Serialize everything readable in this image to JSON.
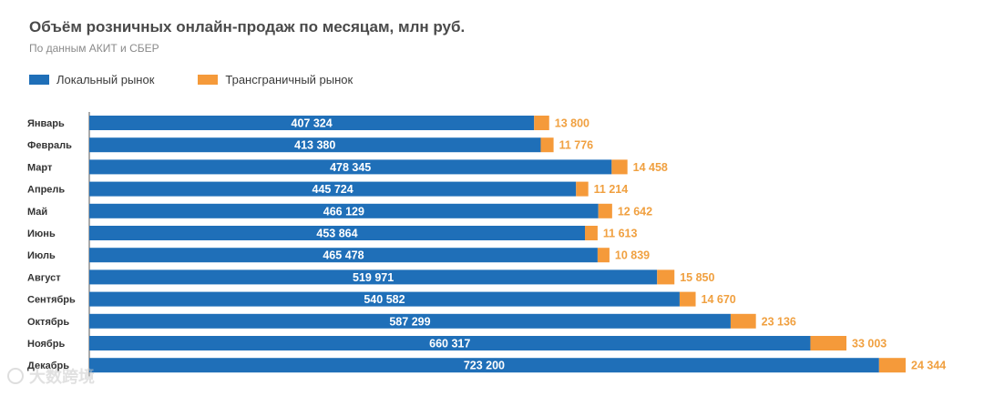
{
  "chart_data": {
    "type": "bar",
    "orientation": "horizontal",
    "stacked": true,
    "title": "Объём розничных онлайн-продаж по месяцам, млн руб.",
    "subtitle": "По данным АКИТ и СБЕР",
    "categories": [
      "Январь",
      "Февраль",
      "Март",
      "Апрель",
      "Май",
      "Июнь",
      "Июль",
      "Август",
      "Сентябрь",
      "Октябрь",
      "Ноябрь",
      "Декабрь"
    ],
    "series": [
      {
        "name": "Локальный рынок",
        "color": "#1f6fb8",
        "values": [
          407324,
          413380,
          478345,
          445724,
          466129,
          453864,
          465478,
          519971,
          540582,
          587299,
          660317,
          723200
        ],
        "labels": [
          "407 324",
          "413 380",
          "478 345",
          "445 724",
          "466 129",
          "453 864",
          "465 478",
          "519 971",
          "540 582",
          "587 299",
          "660 317",
          "723 200"
        ]
      },
      {
        "name": "Трансграничный рынок",
        "color": "#f59a3a",
        "values": [
          13800,
          11776,
          14458,
          11214,
          12642,
          11613,
          10839,
          15850,
          14670,
          23136,
          33003,
          24344
        ],
        "labels": [
          "13 800",
          "11 776",
          "14 458",
          "11 214",
          "12 642",
          "11 613",
          "10 839",
          "15 850",
          "14 670",
          "23 136",
          "33 003",
          "24 344"
        ]
      }
    ],
    "xlim": [
      0,
      747544
    ],
    "grid": false,
    "legend": "top-left"
  },
  "watermark": {
    "text": "大数跨境",
    "icon": "logo-circle-icon"
  }
}
